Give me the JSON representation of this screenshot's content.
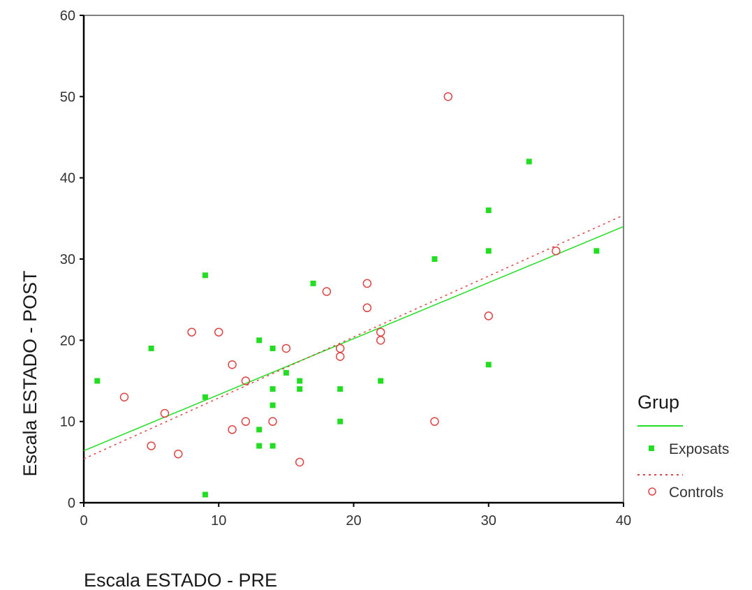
{
  "chart_data": {
    "type": "scatter",
    "xlabel": "Escala ESTADO - PRE",
    "ylabel": "Escala ESTADO - POST",
    "xlim": [
      0,
      40
    ],
    "ylim": [
      0,
      60
    ],
    "x_ticks": [
      "0",
      "10",
      "20",
      "30",
      "40"
    ],
    "y_ticks": [
      "0",
      "10",
      "20",
      "30",
      "40",
      "50",
      "60"
    ],
    "grid": false,
    "legend": {
      "title": "Grup",
      "position": "right",
      "entries": [
        "Exposats",
        "Controls"
      ]
    },
    "series": [
      {
        "name": "Exposats",
        "marker": "filled-square",
        "color": "#22dd22",
        "fit_line": {
          "style": "solid",
          "intercept": 6.4,
          "slope": 0.69
        },
        "points": [
          [
            1,
            15
          ],
          [
            5,
            19
          ],
          [
            9,
            28
          ],
          [
            9,
            13
          ],
          [
            9,
            1
          ],
          [
            13,
            20
          ],
          [
            13,
            9
          ],
          [
            13,
            7
          ],
          [
            14,
            19
          ],
          [
            14,
            14
          ],
          [
            14,
            12
          ],
          [
            14,
            7
          ],
          [
            15,
            16
          ],
          [
            16,
            15
          ],
          [
            16,
            14
          ],
          [
            17,
            27
          ],
          [
            19,
            14
          ],
          [
            19,
            10
          ],
          [
            22,
            15
          ],
          [
            26,
            30
          ],
          [
            30,
            36
          ],
          [
            30,
            31
          ],
          [
            30,
            17
          ],
          [
            33,
            42
          ],
          [
            38,
            31
          ]
        ]
      },
      {
        "name": "Controls",
        "marker": "open-circle",
        "color": "#dd4444",
        "fit_line": {
          "style": "dotted",
          "intercept": 5.4,
          "slope": 0.75
        },
        "points": [
          [
            3,
            13
          ],
          [
            5,
            7
          ],
          [
            6,
            11
          ],
          [
            7,
            6
          ],
          [
            8,
            21
          ],
          [
            10,
            21
          ],
          [
            11,
            17
          ],
          [
            11,
            9
          ],
          [
            12,
            15
          ],
          [
            12,
            10
          ],
          [
            14,
            10
          ],
          [
            15,
            19
          ],
          [
            16,
            5
          ],
          [
            18,
            26
          ],
          [
            19,
            19
          ],
          [
            19,
            18
          ],
          [
            21,
            27
          ],
          [
            21,
            24
          ],
          [
            22,
            21
          ],
          [
            22,
            20
          ],
          [
            26,
            10
          ],
          [
            27,
            50
          ],
          [
            30,
            23
          ],
          [
            35,
            31
          ]
        ]
      }
    ]
  }
}
